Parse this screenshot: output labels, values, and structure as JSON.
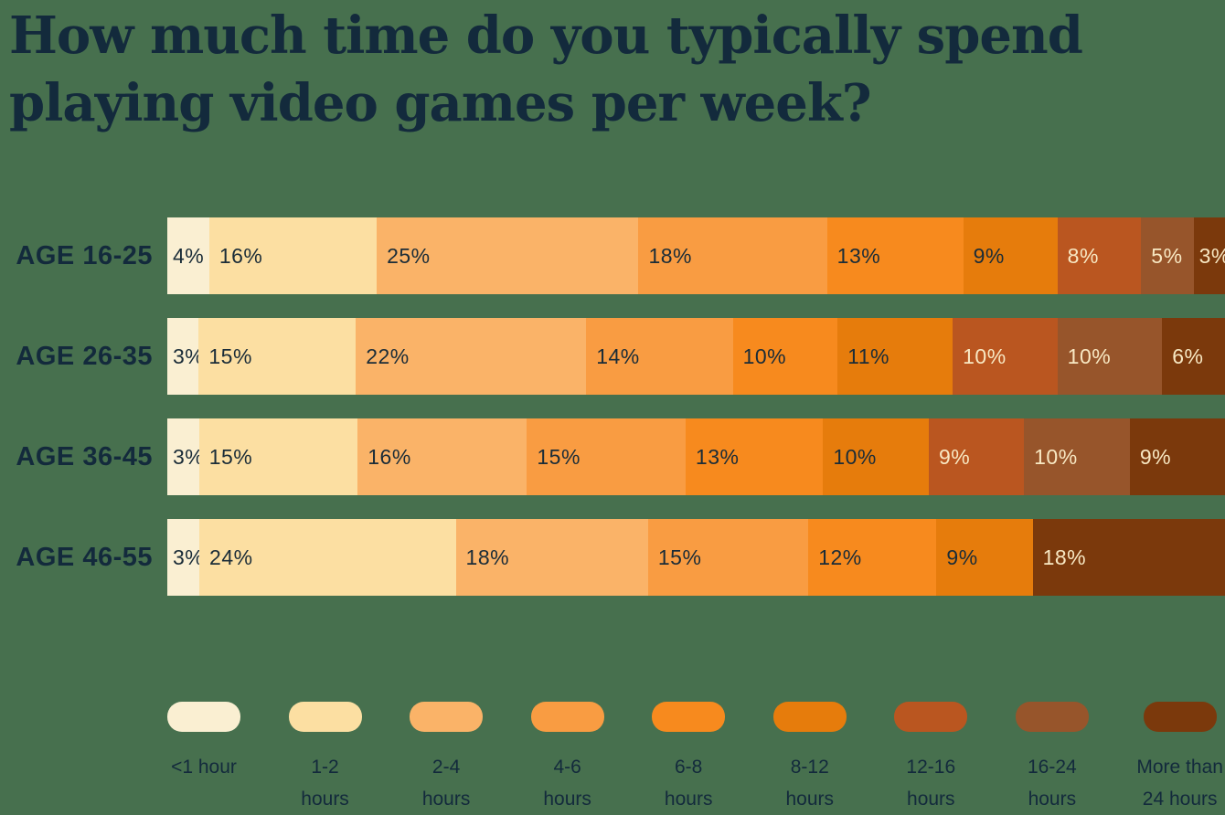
{
  "title": {
    "line1": "How much time do you typically spend",
    "line2": "playing video games per week?"
  },
  "colors": {
    "background": "#47704E",
    "heading_text": "#132A3C",
    "segment_text_dark": "#1A2C38",
    "segment_text_light": "#F8E8C3"
  },
  "chart_data": {
    "type": "bar",
    "stacked": true,
    "orientation": "horizontal",
    "unit": "%",
    "title": "How much time do you typically spend playing video games per week?",
    "categories": [
      "<1 hour",
      "1-2 hours",
      "2-4 hours",
      "4-6 hours",
      "6-8 hours",
      "8-12 hours",
      "12-16 hours",
      "16-24 hours",
      "More than 24 hours"
    ],
    "category_colors": [
      "#FAEFD2",
      "#FCDFA2",
      "#FAB368",
      "#F99C42",
      "#F78A1E",
      "#E67C0C",
      "#BA5620",
      "#97552B",
      "#7B390C"
    ],
    "light_text_from_index": 6,
    "rows": [
      {
        "label": "AGE 16-25",
        "values": [
          4,
          16,
          25,
          18,
          13,
          9,
          8,
          5,
          3
        ],
        "display_labels": [
          "4%",
          "16%",
          "25%",
          "18%",
          "13%",
          "9%",
          "8%",
          "5%",
          "3%"
        ]
      },
      {
        "label": "AGE 26-35",
        "values": [
          3,
          15,
          22,
          14,
          10,
          11,
          10,
          10,
          6
        ],
        "display_labels": [
          "3%",
          "15%",
          "22%",
          "14%",
          "10%",
          "11%",
          "10%",
          "10%",
          "6%"
        ]
      },
      {
        "label": "AGE 36-45",
        "values": [
          3,
          15,
          16,
          15,
          13,
          10,
          9,
          10,
          9
        ],
        "display_labels": [
          "3%",
          "15%",
          "16%",
          "15%",
          "13%",
          "10%",
          "9%",
          "10%",
          "9%"
        ]
      },
      {
        "label": "AGE 46-55",
        "values": [
          3,
          24,
          18,
          15,
          12,
          9,
          0,
          0,
          18
        ],
        "display_labels": [
          "3%",
          "24%",
          "18%",
          "15%",
          "12%",
          "9%",
          "",
          "",
          "18%"
        ]
      }
    ],
    "legend_position": "bottom"
  },
  "legend": {
    "items": [
      {
        "label_lines": [
          "<1 hour"
        ]
      },
      {
        "label_lines": [
          "1-2",
          "hours"
        ]
      },
      {
        "label_lines": [
          "2-4",
          "hours"
        ]
      },
      {
        "label_lines": [
          "4-6",
          "hours"
        ]
      },
      {
        "label_lines": [
          "6-8",
          "hours"
        ]
      },
      {
        "label_lines": [
          "8-12",
          "hours"
        ]
      },
      {
        "label_lines": [
          "12-16",
          "hours"
        ]
      },
      {
        "label_lines": [
          "16-24",
          "hours"
        ]
      },
      {
        "label_lines": [
          "More than",
          "24 hours"
        ]
      }
    ]
  }
}
